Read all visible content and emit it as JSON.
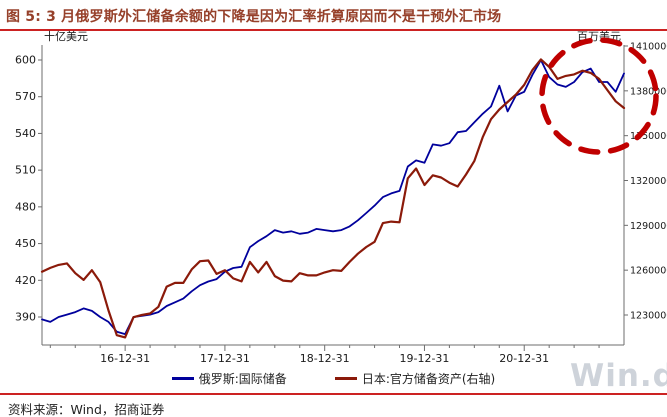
{
  "title": "图 5: 3 月俄罗斯外汇储备余额的下降是因为汇率折算原因而不是干预外汇市场",
  "source_note": "资料来源：Wind，招商证券",
  "watermark": "Win.d",
  "legend": {
    "items": [
      {
        "label": "俄罗斯:国际储备",
        "color": "#00009C"
      },
      {
        "label": "日本:官方储备资产(右轴)",
        "color": "#8B1A0A"
      }
    ]
  },
  "chart_data": {
    "type": "line",
    "title": "图 5: 3 月俄罗斯外汇储备余额的下降是因为汇率折算原因而不是干预外汇市场",
    "left_axis": {
      "unit_label": "十亿美元",
      "ticks": [
        390,
        420,
        450,
        480,
        510,
        540,
        570,
        600
      ],
      "range": [
        372,
        608
      ]
    },
    "right_axis": {
      "unit_label": "百万美元",
      "ticks": [
        1230000,
        1260000,
        1290000,
        1320000,
        1350000,
        1380000,
        1410000
      ],
      "range": [
        1213000,
        1412000
      ]
    },
    "x_ticks": [
      "16-12-31",
      "17-12-31",
      "18-12-31",
      "19-12-31",
      "20-12-31"
    ],
    "x_note": "monthly points, 2016-02 through 2021; year-end gridline labels shown",
    "grid": false,
    "legend_position": "bottom",
    "series": [
      {
        "name": "俄罗斯:国际储备",
        "axis": "left",
        "color": "#00009C",
        "values": [
          388,
          386,
          390,
          392,
          394,
          397,
          395,
          390,
          386,
          378,
          376,
          390,
          391,
          392,
          394,
          399,
          402,
          405,
          411,
          416,
          419,
          421,
          427,
          430,
          431,
          447,
          452,
          456,
          461,
          459,
          460,
          458,
          459,
          462,
          461,
          460,
          461,
          464,
          469,
          475,
          481,
          488,
          491,
          493,
          513,
          518,
          516,
          531,
          530,
          532,
          541,
          542,
          549,
          556,
          562,
          579,
          558,
          571,
          574,
          588,
          600,
          586,
          580,
          578,
          582,
          590,
          593,
          582,
          582,
          574,
          589
        ]
      },
      {
        "name": "日本:官方储备资产(右轴)",
        "axis": "right",
        "color": "#8B1A0A",
        "values": [
          1259000,
          1261500,
          1263500,
          1264500,
          1258000,
          1253500,
          1260000,
          1252000,
          1233000,
          1216500,
          1215000,
          1228500,
          1230000,
          1231000,
          1235500,
          1249000,
          1251500,
          1251500,
          1260500,
          1266000,
          1266500,
          1257500,
          1260000,
          1254500,
          1252500,
          1265500,
          1258500,
          1265500,
          1256000,
          1253000,
          1252500,
          1258000,
          1256500,
          1256500,
          1258500,
          1260000,
          1259500,
          1265500,
          1271000,
          1275500,
          1279000,
          1291500,
          1292500,
          1292000,
          1321500,
          1328000,
          1317000,
          1323500,
          1322000,
          1318500,
          1316000,
          1324000,
          1333000,
          1349000,
          1361000,
          1367500,
          1372500,
          1377500,
          1384000,
          1394000,
          1401000,
          1396000,
          1388000,
          1390000,
          1391000,
          1393500,
          1392000,
          1388000,
          1380500,
          1373000,
          1368500
        ]
      }
    ],
    "annotation": {
      "shape": "dashed-circle",
      "color": "#C00000",
      "note": "红色虚线圈出 2021 年 3 月两条储备曲线的回落"
    }
  }
}
